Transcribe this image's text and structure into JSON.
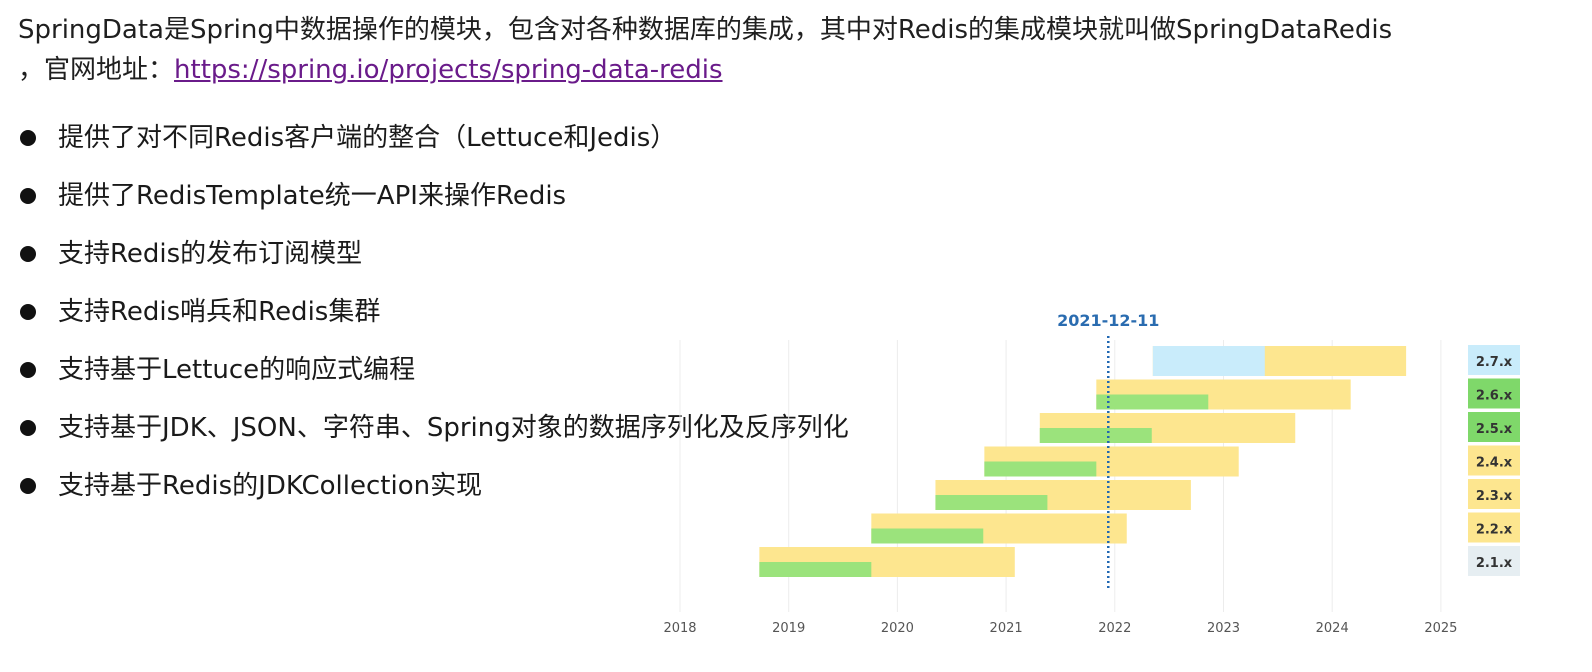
{
  "intro": {
    "line1": "SpringData是Spring中数据操作的模块，包含对各种数据库的集成，其中对Redis的集成模块就叫做SpringDataRedis",
    "line2_prefix": "，官网地址：",
    "link": "https://spring.io/projects/spring-data-redis"
  },
  "bullets": [
    "提供了对不同Redis客户端的整合（Lettuce和Jedis）",
    "提供了RedisTemplate统一API来操作Redis",
    "支持Redis的发布订阅模型",
    "支持Redis哨兵和Redis集群",
    "支持基于Lettuce的响应式编程",
    "支持基于JDK、JSON、字符串、Spring对象的数据序列化及反序列化",
    "支持基于Redis的JDKCollection实现"
  ],
  "chart_data": {
    "type": "gantt",
    "x_ticks": [
      2018,
      2019,
      2020,
      2021,
      2022,
      2023,
      2024,
      2025
    ],
    "xlim": [
      2017.55,
      2025.3
    ],
    "today": {
      "label": "2021-12-11",
      "value": 2021.94
    },
    "colors": {
      "oss": "#9be37c",
      "commercial": "#fde68f",
      "future": "#c9ecfb",
      "today": "#1f66b2"
    },
    "versions": [
      {
        "name": "2.7.x",
        "oss_start": 2022.35,
        "oss_end": 2023.38,
        "oss_color": "#c9ecfb",
        "comm_end": 2024.68,
        "label_bg": "#c9ecfb"
      },
      {
        "name": "2.6.x",
        "oss_start": 2021.83,
        "oss_end": 2022.86,
        "oss_color": "#9be37c",
        "comm_end": 2024.17,
        "label_bg": "#7fd86a"
      },
      {
        "name": "2.5.x",
        "oss_start": 2021.31,
        "oss_end": 2022.34,
        "oss_color": "#9be37c",
        "comm_end": 2023.66,
        "label_bg": "#7fd86a"
      },
      {
        "name": "2.4.x",
        "oss_start": 2020.8,
        "oss_end": 2021.83,
        "oss_color": "#9be37c",
        "comm_end": 2023.14,
        "label_bg": "#fde68f"
      },
      {
        "name": "2.3.x",
        "oss_start": 2020.35,
        "oss_end": 2021.38,
        "oss_color": "#9be37c",
        "comm_end": 2022.7,
        "label_bg": "#fde68f"
      },
      {
        "name": "2.2.x",
        "oss_start": 2019.76,
        "oss_end": 2020.79,
        "oss_color": "#9be37c",
        "comm_end": 2022.11,
        "label_bg": "#fde68f"
      },
      {
        "name": "2.1.x",
        "oss_start": 2018.73,
        "oss_end": 2019.76,
        "oss_color": "#9be37c",
        "comm_end": 2021.08,
        "label_bg": "#e6eef2"
      }
    ]
  }
}
